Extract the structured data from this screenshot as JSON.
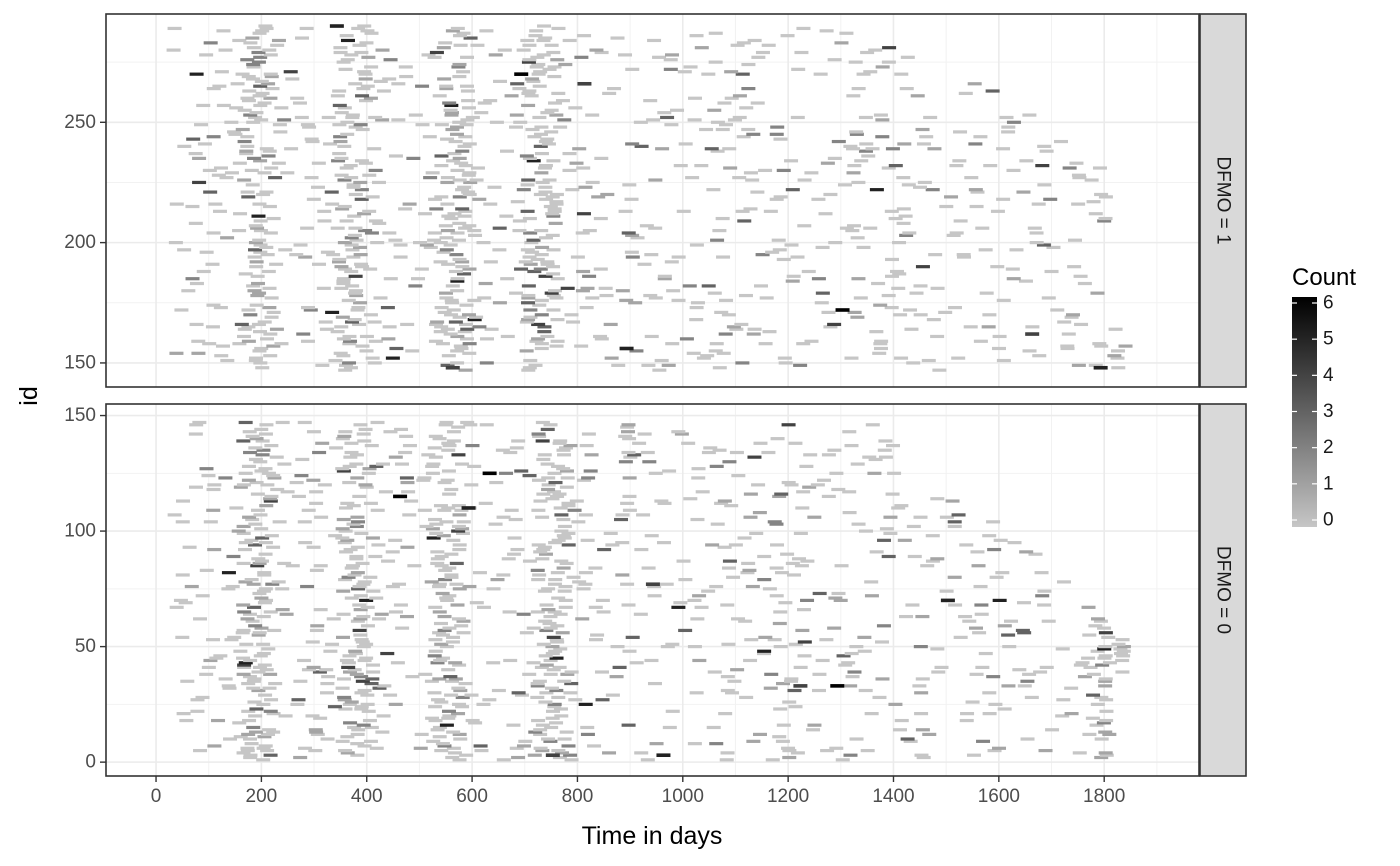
{
  "chart_data": {
    "type": "heatmap",
    "title": "",
    "xlabel": "Time in days",
    "ylabel": "id",
    "xlim": [
      -95,
      1980
    ],
    "x_ticks": [
      0,
      200,
      400,
      600,
      800,
      1000,
      1200,
      1400,
      1600,
      1800
    ],
    "x_tick_labels": [
      "0",
      "200",
      "400",
      "600",
      "800",
      "1000",
      "1200",
      "1400",
      "1600",
      "1800"
    ],
    "grid": true,
    "facet_variable": "DFMO",
    "legend": {
      "title": "Count",
      "position": "right",
      "min": 0,
      "max": 6,
      "breaks": [
        0,
        1,
        2,
        3,
        4,
        5,
        6
      ],
      "low_color": "#c6c6c6",
      "high_color": "#000000"
    },
    "panels": [
      {
        "strip_label": "DFMO = 1",
        "ylim": [
          140,
          295
        ],
        "y_ticks": [
          150,
          200,
          250
        ],
        "y_tick_labels": [
          "150",
          "200",
          "250"
        ],
        "id_range": [
          147,
          290
        ],
        "max_days_by_row": [
          [
            147,
            1850
          ],
          [
            175,
            1810
          ],
          [
            200,
            1800
          ],
          [
            230,
            1820
          ],
          [
            250,
            1700
          ],
          [
            275,
            1500
          ],
          [
            290,
            1320
          ]
        ],
        "high_density_bands_days": [
          180,
          360,
          555,
          720
        ],
        "darker_cells": [
          [
            550,
            148
          ],
          [
            880,
            156
          ],
          [
            1290,
            172
          ],
          [
            1650,
            162
          ],
          [
            1780,
            148
          ],
          [
            680,
            270
          ],
          [
            800,
            266
          ],
          [
            330,
            290
          ]
        ]
      },
      {
        "strip_label": "DFMO = 0",
        "ylim": [
          -6,
          155
        ],
        "y_ticks": [
          0,
          50,
          100,
          150
        ],
        "y_tick_labels": [
          "0",
          "50",
          "100",
          "150"
        ],
        "id_range": [
          1,
          147
        ],
        "max_days_by_row": [
          [
            1,
            1800
          ],
          [
            30,
            1800
          ],
          [
            47,
            1860
          ],
          [
            60,
            1800
          ],
          [
            80,
            1730
          ],
          [
            100,
            1630
          ],
          [
            125,
            1410
          ],
          [
            147,
            1390
          ]
        ],
        "high_density_bands_days": [
          180,
          370,
          540,
          740,
          1795
        ],
        "darker_cells": [
          [
            740,
            3
          ],
          [
            950,
            3
          ],
          [
            1280,
            33
          ],
          [
            1210,
            33
          ],
          [
            580,
            110
          ],
          [
            450,
            115
          ],
          [
            930,
            77
          ],
          [
            1490,
            70
          ],
          [
            620,
            125
          ]
        ]
      }
    ]
  }
}
